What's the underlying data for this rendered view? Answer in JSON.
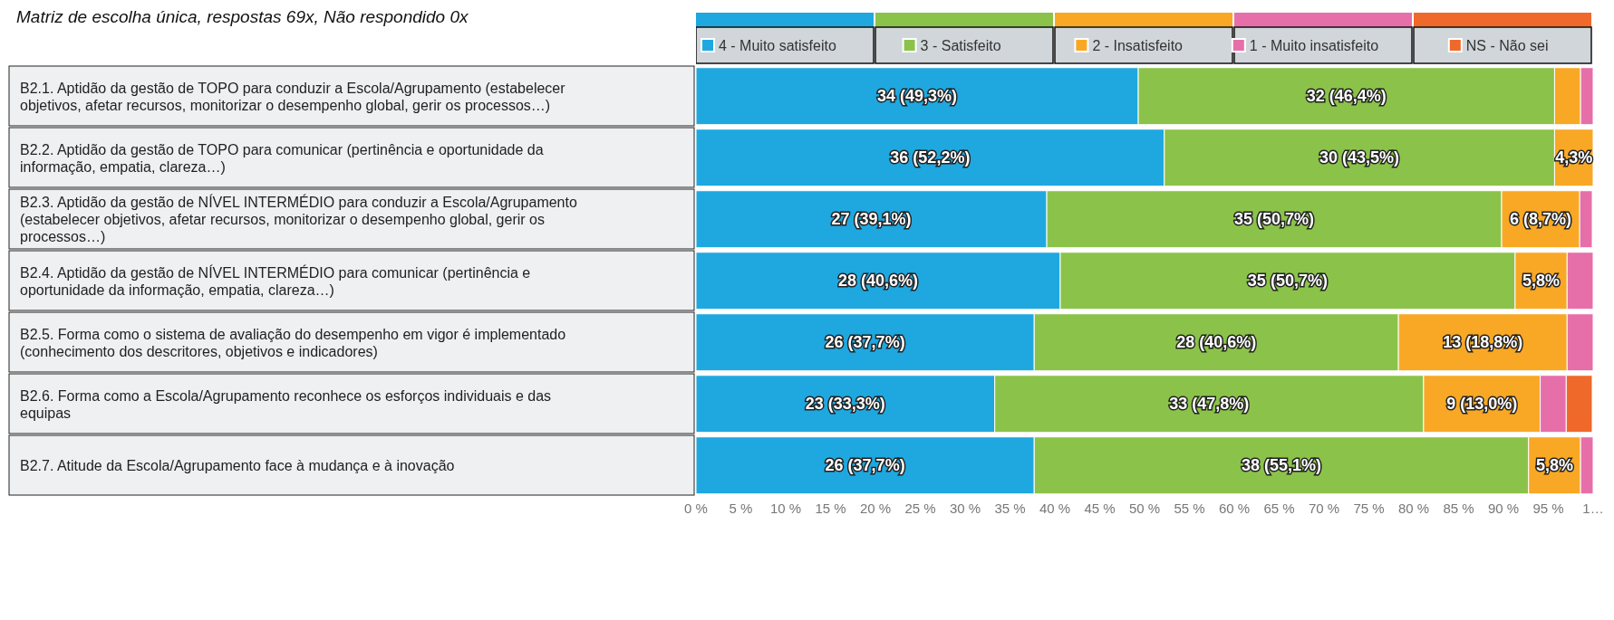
{
  "chart_data": {
    "type": "bar",
    "orientation": "horizontal",
    "stacked": true,
    "title": "Matriz de escolha única, respostas 69x, Não respondido 0x",
    "categories": [
      "B2.1. Aptidão da gestão de TOPO para conduzir a Escola/Agrupamento (estabelecer objetivos, afetar recursos, monitorizar o desempenho global, gerir os processos…)",
      "B2.2. Aptidão da gestão de TOPO para comunicar (pertinência e oportunidade da informação, empatia, clareza…)",
      "B2.3. Aptidão da gestão de NÍVEL INTERMÉDIO para conduzir a Escola/Agrupamento (estabelecer objetivos, afetar recursos, monitorizar o desempenho global, gerir os processos…)",
      "B2.4. Aptidão da gestão de NÍVEL INTERMÉDIO para comunicar (pertinência e oportunidade da informação, empatia, clareza…)",
      "B2.5. Forma como o sistema de avaliação do desempenho em vigor é implementado (conhecimento dos descritores, objetivos e indicadores)",
      "B2.6. Forma como a Escola/Agrupamento reconhece os esforços individuais e das equipas",
      "B2.7. Atitude da Escola/Agrupamento face à mudança e à inovação"
    ],
    "series": [
      {
        "name": "4 - Muito satisfeito",
        "color": "#1fa8df",
        "values": [
          49.3,
          52.2,
          39.1,
          40.6,
          37.7,
          33.3,
          37.7
        ],
        "value_labels": [
          "34 (49,3%)",
          "36 (52,2%)",
          "27 (39,1%)",
          "28 (40,6%)",
          "26 (37,7%)",
          "23 (33,3%)",
          "26 (37,7%)"
        ]
      },
      {
        "name": "3 - Satisfeito",
        "color": "#8bc34a",
        "values": [
          46.4,
          43.5,
          50.7,
          50.7,
          40.6,
          47.8,
          55.1
        ],
        "value_labels": [
          "32 (46,4%)",
          "30 (43,5%)",
          "35 (50,7%)",
          "35 (50,7%)",
          "28 (40,6%)",
          "33 (47,8%)",
          "38 (55,1%)"
        ]
      },
      {
        "name": "2 - Insatisfeito",
        "color": "#f9a825",
        "values": [
          2.9,
          4.3,
          8.7,
          5.8,
          18.8,
          13.0,
          5.8
        ],
        "value_labels": [
          null,
          "4,3%",
          "6 (8,7%)",
          "5,8%",
          "13 (18,8%)",
          "9 (13,0%)",
          "5,8%"
        ]
      },
      {
        "name": "1 - Muito insatisfeito",
        "color": "#e66fa9",
        "values": [
          1.4,
          0,
          1.4,
          2.9,
          2.9,
          2.9,
          1.4
        ]
      },
      {
        "name": "NS - Não sei",
        "color": "#ef6a2a",
        "values": [
          0,
          0,
          0,
          0,
          0,
          2.9,
          0
        ]
      }
    ],
    "xlim": [
      0,
      100
    ],
    "xticks": [
      {
        "value": 0,
        "label": "0 %"
      },
      {
        "value": 5,
        "label": "5 %"
      },
      {
        "value": 10,
        "label": "10 %"
      },
      {
        "value": 15,
        "label": "15 %"
      },
      {
        "value": 20,
        "label": "20 %"
      },
      {
        "value": 25,
        "label": "25 %"
      },
      {
        "value": 30,
        "label": "30 %"
      },
      {
        "value": 35,
        "label": "35 %"
      },
      {
        "value": 40,
        "label": "40 %"
      },
      {
        "value": 45,
        "label": "45 %"
      },
      {
        "value": 50,
        "label": "50 %"
      },
      {
        "value": 55,
        "label": "55 %"
      },
      {
        "value": 60,
        "label": "60 %"
      },
      {
        "value": 65,
        "label": "65 %"
      },
      {
        "value": 70,
        "label": "70 %"
      },
      {
        "value": 75,
        "label": "75 %"
      },
      {
        "value": 80,
        "label": "80 %"
      },
      {
        "value": 85,
        "label": "85 %"
      },
      {
        "value": 90,
        "label": "90 %"
      },
      {
        "value": 95,
        "label": "95 %"
      },
      {
        "value": 100,
        "label": "1…"
      }
    ],
    "legend": "top"
  }
}
